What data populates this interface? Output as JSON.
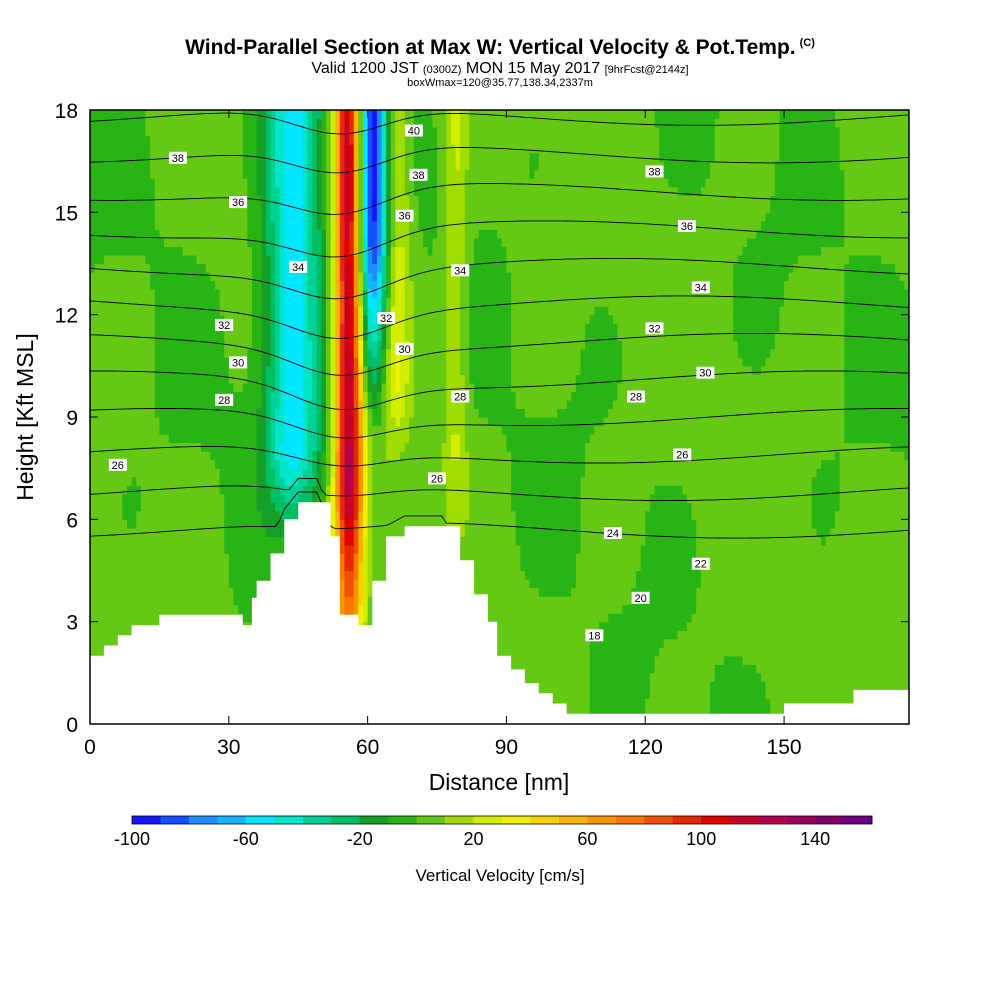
{
  "title": "Wind-Parallel Section at Max W: Vertical Velocity & Pot.Temp.",
  "copyright": "(C)",
  "subtitle_valid": "Valid 1200 JST",
  "subtitle_utc": "(0300Z)",
  "subtitle_date": "MON 15 May 2017",
  "subtitle_fcst": "[9hrFcst@2144z]",
  "subtitle2": "boxWmax=120@35.77,138.34,2337m",
  "chart_data": {
    "type": "heatmap",
    "xlabel": "Distance [nm]",
    "ylabel": "Height [Kft MSL]",
    "xlim": [
      0,
      177
    ],
    "ylim": [
      0,
      18
    ],
    "xticks": [
      0,
      30,
      60,
      90,
      120,
      150
    ],
    "yticks": [
      0,
      3,
      6,
      9,
      12,
      15,
      18
    ],
    "grid": false,
    "colorbar": {
      "title": "Vertical Velocity [cm/s]",
      "min": -100,
      "max": 160,
      "step": 10,
      "tick_values": [
        -100,
        -60,
        -20,
        20,
        60,
        100,
        140
      ],
      "tick_labels": [
        "-100",
        "-60",
        "-20",
        "20",
        "60",
        "100",
        "140"
      ],
      "colors": [
        "#1414ff",
        "#1450ff",
        "#1e8cff",
        "#14b4ff",
        "#00e6ff",
        "#00e6c8",
        "#00d296",
        "#00be64",
        "#14a028",
        "#28b414",
        "#64c814",
        "#a0dc00",
        "#d2ee00",
        "#f0f000",
        "#f8d200",
        "#f8b400",
        "#f89600",
        "#f87800",
        "#f05000",
        "#e82800",
        "#e00000",
        "#c80028",
        "#b4004e",
        "#9b005f",
        "#82006e",
        "#6e0082"
      ]
    },
    "terrain_profile": {
      "x": [
        0,
        3,
        6,
        9,
        12,
        15,
        20,
        25,
        30,
        33,
        35,
        36,
        39,
        42,
        45,
        49,
        52,
        54,
        55,
        58,
        61,
        64,
        68,
        72,
        76,
        80,
        83,
        86,
        88,
        91,
        94,
        97,
        100,
        103,
        106,
        120,
        140,
        150,
        155,
        165,
        177
      ],
      "height_kft": [
        2.0,
        2.3,
        2.6,
        2.9,
        2.9,
        3.2,
        3.2,
        3.2,
        3.2,
        2.9,
        3.7,
        4.2,
        5.0,
        6.0,
        6.5,
        6.5,
        5.5,
        3.2,
        3.2,
        2.9,
        4.2,
        5.5,
        5.8,
        5.8,
        5.8,
        4.8,
        3.8,
        3.0,
        2.0,
        1.6,
        1.2,
        0.9,
        0.6,
        0.3,
        0.3,
        0.3,
        0.3,
        0.6,
        0.6,
        1.0,
        1.0
      ]
    },
    "contours": {
      "variable": "Potential Temperature",
      "levels": [
        18,
        20,
        22,
        24,
        26,
        28,
        30,
        32,
        34,
        36,
        38,
        40
      ],
      "labels": [
        {
          "text": "40",
          "x": 70,
          "y": 17.4
        },
        {
          "text": "38",
          "x": 19,
          "y": 16.6
        },
        {
          "text": "38",
          "x": 71,
          "y": 16.1
        },
        {
          "text": "38",
          "x": 122,
          "y": 16.2
        },
        {
          "text": "36",
          "x": 32,
          "y": 15.3
        },
        {
          "text": "36",
          "x": 68,
          "y": 14.9
        },
        {
          "text": "36",
          "x": 129,
          "y": 14.6
        },
        {
          "text": "34",
          "x": 45,
          "y": 13.4
        },
        {
          "text": "34",
          "x": 80,
          "y": 13.3
        },
        {
          "text": "34",
          "x": 132,
          "y": 12.8
        },
        {
          "text": "32",
          "x": 29,
          "y": 11.7
        },
        {
          "text": "32",
          "x": 64,
          "y": 11.9
        },
        {
          "text": "32",
          "x": 122,
          "y": 11.6
        },
        {
          "text": "30",
          "x": 32,
          "y": 10.6
        },
        {
          "text": "30",
          "x": 68,
          "y": 11.0
        },
        {
          "text": "30",
          "x": 133,
          "y": 10.3
        },
        {
          "text": "28",
          "x": 29,
          "y": 9.5
        },
        {
          "text": "28",
          "x": 80,
          "y": 9.6
        },
        {
          "text": "28",
          "x": 118,
          "y": 9.6
        },
        {
          "text": "26",
          "x": 6,
          "y": 7.6
        },
        {
          "text": "26",
          "x": 75,
          "y": 7.2
        },
        {
          "text": "26",
          "x": 128,
          "y": 7.9
        },
        {
          "text": "24",
          "x": 113,
          "y": 5.6
        },
        {
          "text": "22",
          "x": 132,
          "y": 4.7
        },
        {
          "text": "20",
          "x": 119,
          "y": 3.7
        },
        {
          "text": "18",
          "x": 109,
          "y": 2.6
        }
      ]
    },
    "features": [
      {
        "name": "updraft-core",
        "x_center": 56,
        "half_width": 3,
        "peak_cm_s": 120
      },
      {
        "name": "downdraft-core",
        "x_center": 61,
        "half_width": 3.5,
        "min_cm_s": -100
      },
      {
        "name": "downdraft-flank",
        "x_center": 44,
        "half_width": 6,
        "min_cm_s": -60
      }
    ]
  },
  "colors": {
    "background": "#ffffff",
    "terrain": "#ffffff",
    "contour": "#000000"
  }
}
